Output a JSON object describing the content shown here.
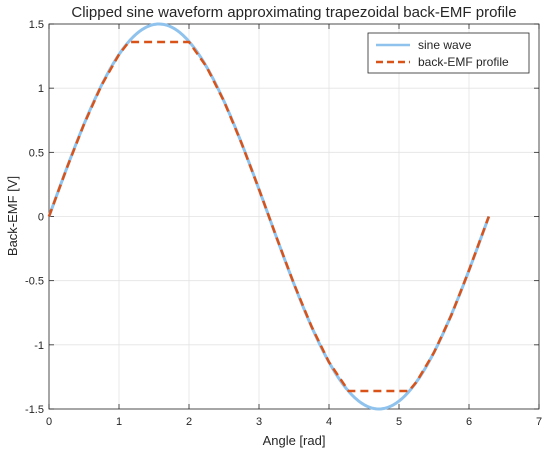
{
  "chart_data": {
    "type": "line",
    "title": "Clipped sine waveform approximating trapezoidal back-EMF profile",
    "xlabel": "Angle [rad]",
    "ylabel": "Back-EMF [V]",
    "xlim": [
      0,
      7
    ],
    "ylim": [
      -1.5,
      1.5
    ],
    "xticks": [
      0,
      1,
      2,
      3,
      4,
      5,
      6,
      7
    ],
    "yticks": [
      -1.5,
      -1,
      -0.5,
      0,
      0.5,
      1,
      1.5
    ],
    "xtick_labels": [
      "0",
      "1",
      "2",
      "3",
      "4",
      "5",
      "6",
      "7"
    ],
    "ytick_labels": [
      "-1.5",
      "-1",
      "-0.5",
      "0",
      "0.5",
      "1",
      "1.5"
    ],
    "grid": true,
    "legend_position": "top-right",
    "series": [
      {
        "name": "sine wave",
        "color": "#8fc3ee",
        "style": "solid",
        "x": [
          0,
          0.25,
          0.5,
          0.75,
          1.0,
          1.25,
          1.5,
          1.571,
          1.75,
          2.0,
          2.25,
          2.5,
          2.75,
          3.0,
          3.142,
          3.25,
          3.5,
          3.75,
          4.0,
          4.25,
          4.5,
          4.712,
          4.75,
          5.0,
          5.25,
          5.5,
          5.75,
          6.0,
          6.283
        ],
        "values": [
          0,
          0.371,
          0.719,
          1.022,
          1.262,
          1.424,
          1.496,
          1.5,
          1.476,
          1.364,
          1.167,
          0.898,
          0.572,
          0.212,
          0,
          -0.162,
          -0.526,
          -0.857,
          -1.135,
          -1.341,
          -1.463,
          -1.5,
          -1.498,
          -1.438,
          -1.289,
          -1.06,
          -0.767,
          -0.419,
          0
        ]
      },
      {
        "name": "back-EMF profile",
        "color": "#d95319",
        "style": "dashed",
        "x": [
          0,
          0.25,
          0.5,
          0.75,
          1.0,
          1.14,
          2.0,
          2.25,
          2.5,
          2.75,
          3.0,
          3.142,
          3.25,
          3.5,
          3.75,
          4.0,
          4.28,
          5.14,
          5.25,
          5.5,
          5.75,
          6.0,
          6.283
        ],
        "values": [
          0,
          0.371,
          0.719,
          1.022,
          1.262,
          1.36,
          1.36,
          1.167,
          0.898,
          0.572,
          0.212,
          0,
          -0.162,
          -0.526,
          -0.857,
          -1.135,
          -1.36,
          -1.36,
          -1.289,
          -1.06,
          -0.767,
          -0.419,
          0
        ]
      }
    ]
  }
}
